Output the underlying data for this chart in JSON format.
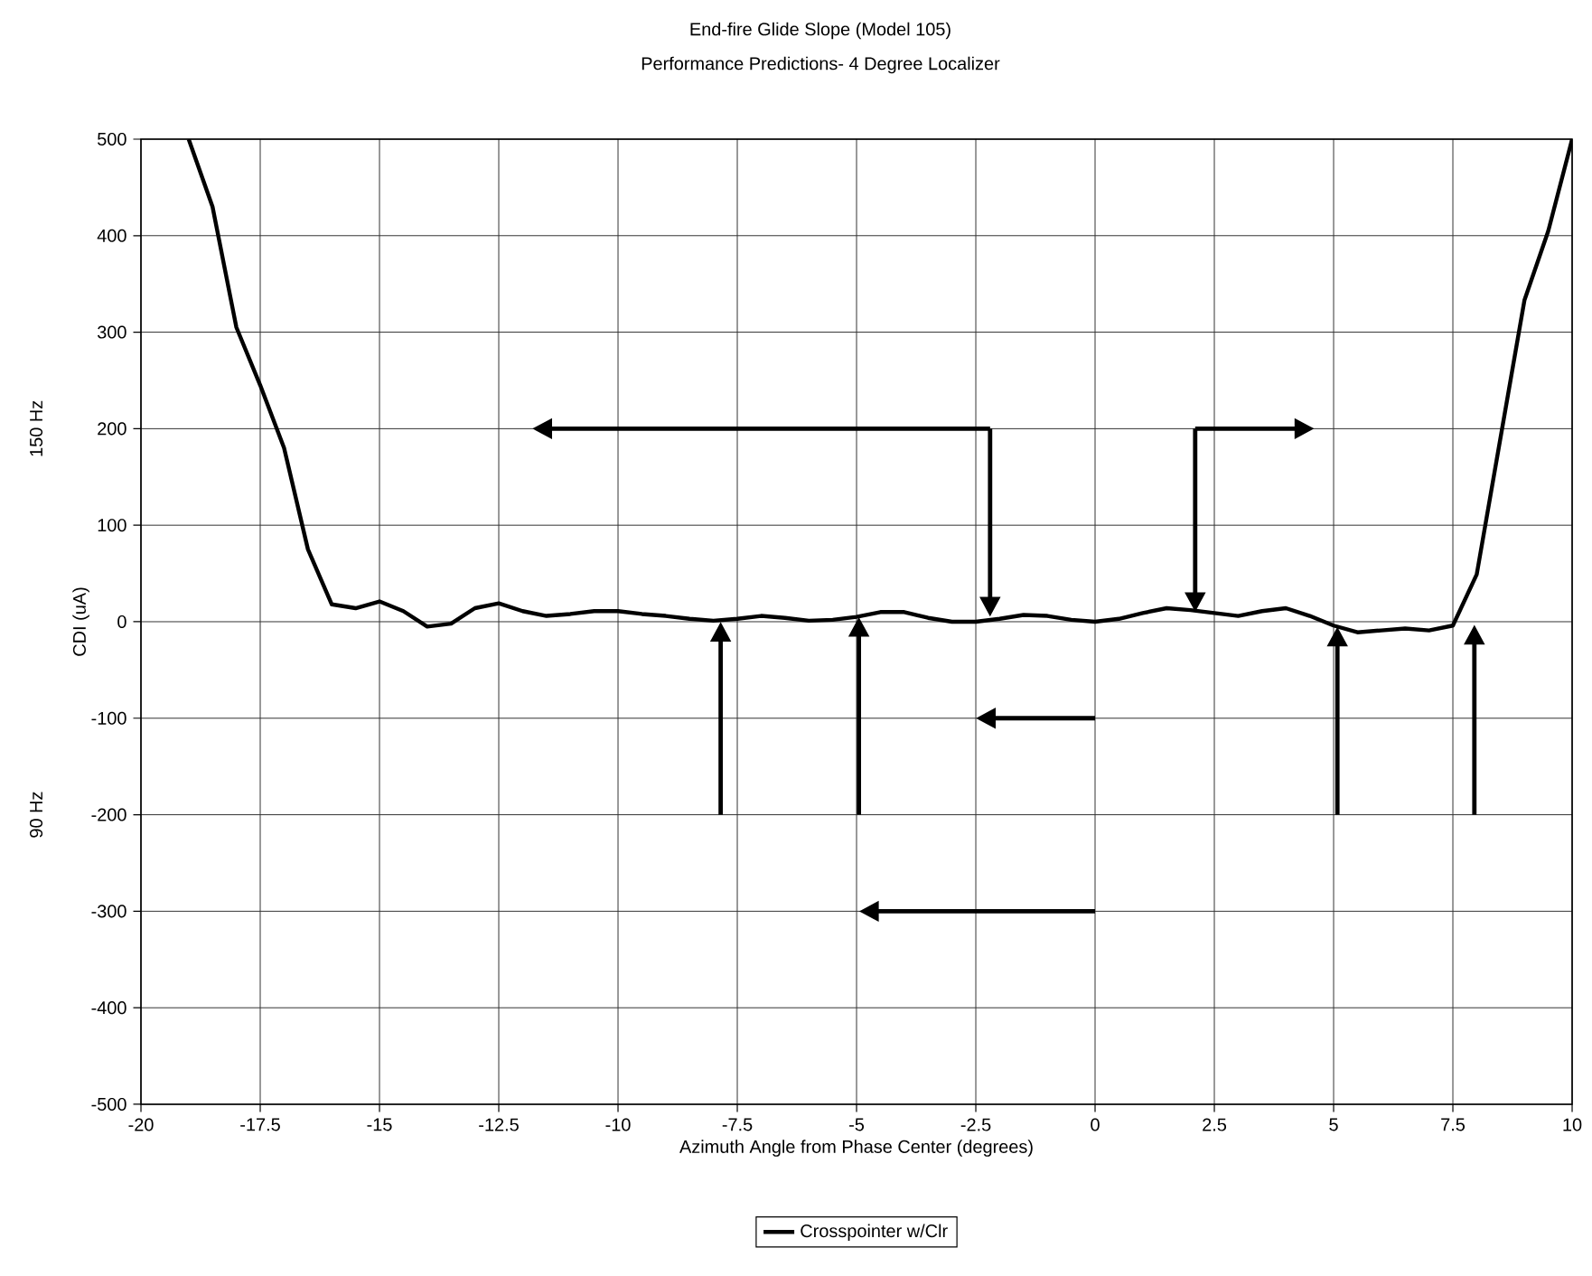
{
  "chart_data": {
    "type": "line",
    "title": "End-fire Glide Slope (Model 105)",
    "subtitle": "Performance Predictions- 4 Degree Localizer",
    "xlabel": "Azimuth Angle from Phase Center (degrees)",
    "ylabel": "CDI (uA)",
    "annotations": [
      "150 Hz",
      "90 Hz"
    ],
    "xlim": [
      -20,
      10
    ],
    "ylim": [
      -500,
      500
    ],
    "xticks": [
      -20,
      -17.5,
      -15,
      -12.5,
      -10,
      -7.5,
      -5,
      -2.5,
      0,
      2.5,
      5,
      7.5,
      10
    ],
    "yticks": [
      -500,
      -400,
      -300,
      -200,
      -100,
      0,
      100,
      200,
      300,
      400,
      500
    ],
    "grid": true,
    "legend": "bottom",
    "marker": "none",
    "line_style": "solid",
    "series": [
      {
        "name": "Crosspointer w/Clr",
        "color": "#000000",
        "x": [
          -19,
          -18.5,
          -18,
          -17.5,
          -17,
          -16.5,
          -16,
          -15.5,
          -15,
          -14.5,
          -14,
          -13.5,
          -13,
          -12.5,
          -12,
          -11.5,
          -11,
          -10.5,
          -10,
          -9.5,
          -9,
          -8.5,
          -8,
          -7.5,
          -7,
          -6.5,
          -6,
          -5.5,
          -5,
          -4.5,
          -4,
          -3.5,
          -3,
          -2.5,
          -2,
          -1.5,
          -1,
          -0.5,
          0,
          0.5,
          1,
          1.5,
          2,
          2.5,
          3,
          3.5,
          4,
          4.5,
          5,
          5.5,
          6,
          6.5,
          7,
          7.5,
          8,
          9,
          9.5,
          10
        ],
        "values": [
          500,
          430,
          305,
          245,
          180,
          75,
          18,
          14,
          21,
          11,
          -5,
          -2,
          14,
          19,
          11,
          6,
          8,
          11,
          11,
          8,
          6,
          3,
          1,
          3,
          6,
          4,
          1,
          2,
          5,
          10,
          10,
          4,
          0,
          0,
          3,
          7,
          6,
          2,
          0,
          3,
          9,
          14,
          12,
          9,
          6,
          11,
          14,
          6,
          -4,
          -11,
          -9,
          -7,
          -9,
          -4,
          49,
          333,
          405,
          500
        ]
      }
    ]
  }
}
